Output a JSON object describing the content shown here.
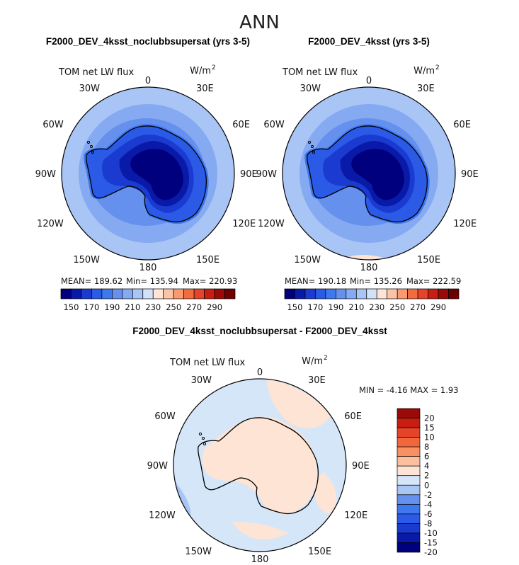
{
  "title": "ANN",
  "colors": {
    "scale_main": [
      "#00007f",
      "#0a1aa8",
      "#1a3ad0",
      "#2a5ae6",
      "#3f77ee",
      "#6590ee",
      "#86aaf1",
      "#a9c5f6",
      "#d2e1f8",
      "#fde4d4",
      "#fcc3a6",
      "#f99a70",
      "#f26c42",
      "#e5432a",
      "#c81e12",
      "#9a0a06",
      "#6e0000"
    ],
    "scale_diff": [
      "#00007f",
      "#0a1aa8",
      "#1a3ad0",
      "#2a5ae6",
      "#3f77ee",
      "#6590ee",
      "#a9c5f6",
      "#d6e6f9",
      "#fde4d4",
      "#fcbe9c",
      "#f99062",
      "#f2663c",
      "#e5432a",
      "#c81e12",
      "#9a0a06"
    ],
    "land_outline": "#000000"
  },
  "panels": [
    {
      "title": "F2000_DEV_4ksst_noclubbsupersat (yrs 3-5)",
      "variable": "TOM net LW flux",
      "units": "W/m",
      "units_exp": "2",
      "stats": {
        "mean_label": "MEAN=",
        "mean": "189.62",
        "min_label": "Min=",
        "min": "135.94",
        "max_label": "Max=",
        "max": "220.93"
      },
      "colorbar_ticks": [
        "150",
        "170",
        "190",
        "210",
        "230",
        "250",
        "270",
        "290"
      ]
    },
    {
      "title": "F2000_DEV_4ksst (yrs 3-5)",
      "variable": "TOM net LW flux",
      "units": "W/m",
      "units_exp": "2",
      "stats": {
        "mean_label": "MEAN=",
        "mean": "190.18",
        "min_label": "Min=",
        "min": "135.26",
        "max_label": "Max=",
        "max": "222.59"
      },
      "colorbar_ticks": [
        "150",
        "170",
        "190",
        "210",
        "230",
        "250",
        "270",
        "290"
      ]
    },
    {
      "title": "F2000_DEV_4ksst_noclubbsupersat - F2000_DEV_4ksst",
      "variable": "TOM net LW flux",
      "units": "W/m",
      "units_exp": "2",
      "stats": {
        "min_label": "MIN =",
        "min": "-4.16",
        "max_label": "MAX =",
        "max": "1.93"
      },
      "colorbar_ticks": [
        "20",
        "15",
        "10",
        "8",
        "6",
        "4",
        "2",
        "0",
        "-2",
        "-4",
        "-6",
        "-8",
        "-10",
        "-15",
        "-20"
      ]
    }
  ],
  "lon_labels": [
    "0",
    "30E",
    "60E",
    "90E",
    "120E",
    "150E",
    "180",
    "150W",
    "120W",
    "90W",
    "60W",
    "30W"
  ],
  "chart_data": [
    {
      "type": "heatmap",
      "projection": "south-polar-stereographic",
      "title": "F2000_DEV_4ksst_noclubbsupersat (yrs 3-5)",
      "variable": "TOM net LW flux",
      "units": "W/m^2",
      "levels": [
        150,
        160,
        170,
        180,
        190,
        200,
        210,
        220,
        230,
        240,
        250,
        260,
        270,
        280,
        290
      ],
      "mean": 189.62,
      "min": 135.94,
      "max": 220.93
    },
    {
      "type": "heatmap",
      "projection": "south-polar-stereographic",
      "title": "F2000_DEV_4ksst (yrs 3-5)",
      "variable": "TOM net LW flux",
      "units": "W/m^2",
      "levels": [
        150,
        160,
        170,
        180,
        190,
        200,
        210,
        220,
        230,
        240,
        250,
        260,
        270,
        280,
        290
      ],
      "mean": 190.18,
      "min": 135.26,
      "max": 222.59
    },
    {
      "type": "heatmap",
      "projection": "south-polar-stereographic",
      "title": "F2000_DEV_4ksst_noclubbsupersat - F2000_DEV_4ksst",
      "variable": "TOM net LW flux",
      "units": "W/m^2",
      "levels": [
        -20,
        -15,
        -10,
        -8,
        -6,
        -4,
        -2,
        0,
        2,
        4,
        6,
        8,
        10,
        15,
        20
      ],
      "min": -4.16,
      "max": 1.93
    }
  ]
}
